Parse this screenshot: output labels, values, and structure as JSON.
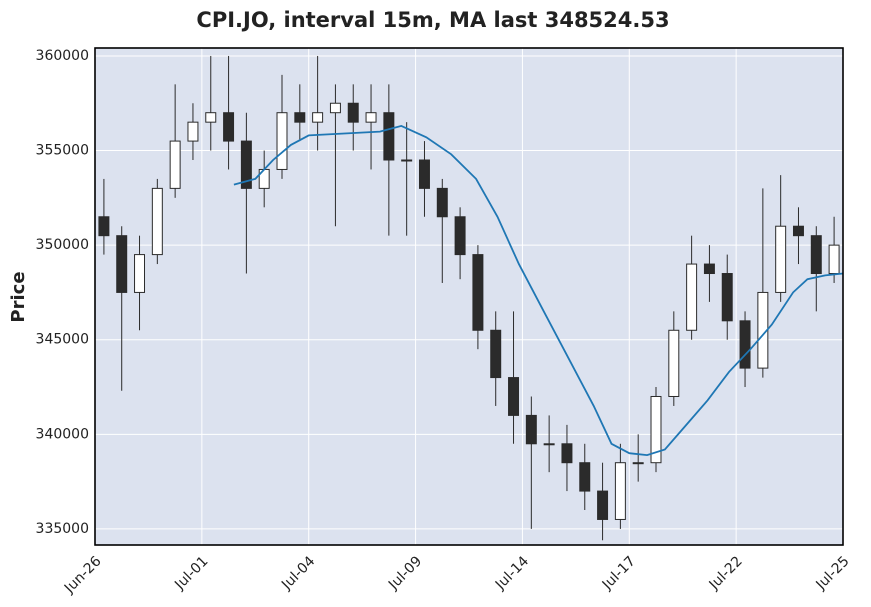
{
  "chart_data": {
    "type": "candlestick",
    "title": "CPI.JO, interval 15m, MA last 348524.53",
    "ylabel": "Price",
    "background": "#dce2ef",
    "grid": true,
    "xlim": [
      0,
      21
    ],
    "xticks": [
      {
        "value": 0,
        "label": "Jun-26"
      },
      {
        "value": 3,
        "label": "Jul-01"
      },
      {
        "value": 6,
        "label": "Jul-04"
      },
      {
        "value": 9,
        "label": "Jul-09"
      },
      {
        "value": 12,
        "label": "Jul-14"
      },
      {
        "value": 15,
        "label": "Jul-17"
      },
      {
        "value": 18,
        "label": "Jul-22"
      },
      {
        "value": 21,
        "label": "Jul-25"
      }
    ],
    "ylim": [
      334150,
      360420
    ],
    "yticks": [
      335000,
      340000,
      345000,
      350000,
      355000,
      360000
    ],
    "candles": {
      "color": "#2b2b2b",
      "x": [
        0.25,
        0.75,
        1.25,
        1.75,
        2.25,
        2.75,
        3.25,
        3.75,
        4.25,
        4.75,
        5.25,
        5.75,
        6.25,
        6.75,
        7.25,
        7.75,
        8.25,
        8.75,
        9.25,
        9.75,
        10.25,
        10.75,
        11.25,
        11.75,
        12.25,
        12.75,
        13.25,
        13.75,
        14.25,
        14.75,
        15.25,
        15.75,
        16.25,
        16.75,
        17.25,
        17.75,
        18.25,
        18.75,
        19.25,
        19.75,
        20.25,
        20.75
      ],
      "open": [
        351500,
        350500,
        347500,
        349500,
        353000,
        355500,
        356500,
        357000,
        355500,
        353000,
        354000,
        357000,
        356500,
        357000,
        357500,
        356500,
        357000,
        354500,
        354500,
        353000,
        351500,
        349500,
        345500,
        343000,
        341000,
        339500,
        339500,
        338500,
        337000,
        335500,
        338500,
        338500,
        342000,
        345500,
        349000,
        348500,
        346000,
        343500,
        347500,
        351000,
        350500,
        348500
      ],
      "high": [
        353500,
        351000,
        350500,
        353500,
        358500,
        357500,
        360000,
        360000,
        357000,
        355000,
        359000,
        358500,
        360000,
        358500,
        358500,
        358500,
        358500,
        356500,
        355500,
        353500,
        352000,
        350000,
        346500,
        346500,
        342000,
        341000,
        340500,
        339500,
        338500,
        339500,
        340000,
        342500,
        346500,
        350500,
        350000,
        349500,
        346500,
        353000,
        353700,
        352000,
        351000,
        351500
      ],
      "low": [
        349500,
        342300,
        345500,
        349000,
        352500,
        354500,
        355000,
        354000,
        348500,
        352000,
        353500,
        355500,
        355000,
        351000,
        355000,
        354000,
        350500,
        350500,
        351500,
        348000,
        348200,
        344500,
        341500,
        339500,
        335000,
        338000,
        337000,
        336000,
        334400,
        335000,
        337500,
        338000,
        341500,
        345000,
        347000,
        345000,
        342500,
        343000,
        347000,
        349000,
        346500,
        348000
      ],
      "close": [
        350500,
        347500,
        349500,
        353000,
        355500,
        356500,
        357000,
        355500,
        353000,
        354000,
        357000,
        356500,
        357000,
        357500,
        356500,
        357000,
        354500,
        354500,
        353000,
        351500,
        349500,
        345500,
        343000,
        341000,
        339500,
        339500,
        338500,
        337000,
        335500,
        338500,
        338500,
        342000,
        345500,
        349000,
        348500,
        346000,
        343500,
        347500,
        351000,
        350500,
        348500,
        350000
      ]
    },
    "series": [
      {
        "color": "#1f77b4",
        "x": [
          3.9,
          4.5,
          5.0,
          5.5,
          6.0,
          7.0,
          8.0,
          8.6,
          9.3,
          10.0,
          10.7,
          11.3,
          11.9,
          12.6,
          13.3,
          14.0,
          14.5,
          15.0,
          15.5,
          16.0,
          16.6,
          17.2,
          17.8,
          18.4,
          19.0,
          19.6,
          20.0,
          20.5,
          21.0
        ],
        "values": [
          353200,
          353500,
          354500,
          355300,
          355800,
          355900,
          356000,
          356300,
          355700,
          354800,
          353500,
          351500,
          349000,
          346500,
          344000,
          341500,
          339500,
          339000,
          338900,
          339200,
          340500,
          341800,
          343300,
          344500,
          345800,
          347500,
          348200,
          348400,
          348500
        ]
      }
    ]
  }
}
